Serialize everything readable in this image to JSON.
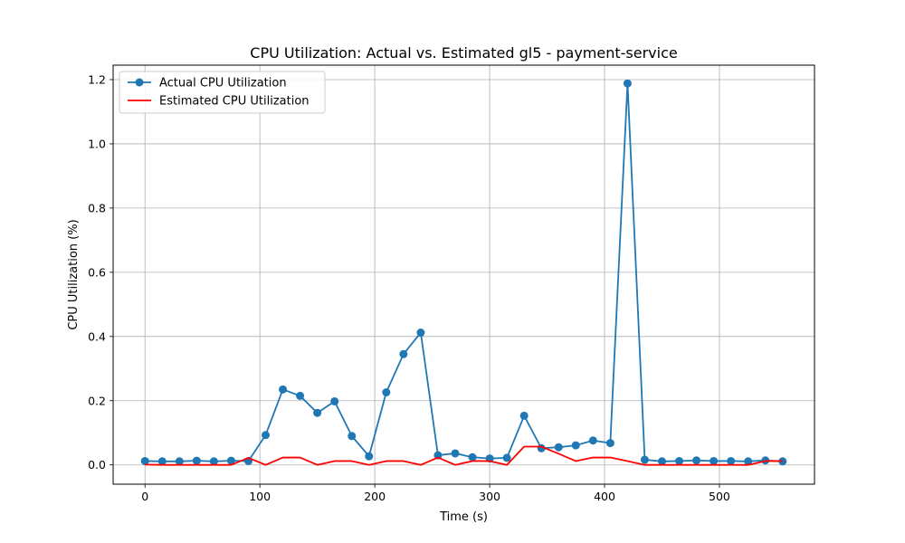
{
  "chart_data": {
    "type": "line",
    "title": "CPU Utilization: Actual vs. Estimated gl5 - payment-service",
    "xlabel": "Time (s)",
    "ylabel": "CPU Utilization (%)",
    "xlim": [
      -27.75,
      582.75
    ],
    "ylim": [
      -0.06,
      1.245
    ],
    "xticks": [
      0,
      100,
      200,
      300,
      400,
      500
    ],
    "xtick_labels": [
      "0",
      "100",
      "200",
      "300",
      "400",
      "500"
    ],
    "yticks": [
      0.0,
      0.2,
      0.4,
      0.6,
      0.8,
      1.0,
      1.2
    ],
    "ytick_labels": [
      "0.0",
      "0.2",
      "0.4",
      "0.6",
      "0.8",
      "1.0",
      "1.2"
    ],
    "grid": true,
    "legend_position": "top-left",
    "x": [
      0,
      15,
      30,
      45,
      60,
      75,
      90,
      105,
      120,
      135,
      150,
      165,
      180,
      195,
      210,
      225,
      240,
      255,
      270,
      285,
      300,
      315,
      330,
      345,
      360,
      375,
      390,
      405,
      420,
      435,
      450,
      465,
      480,
      495,
      510,
      525,
      540,
      555
    ],
    "series": [
      {
        "name": "Actual CPU Utilization",
        "color": "#1f77b4",
        "marker": "circle",
        "values": [
          0.012,
          0.011,
          0.011,
          0.013,
          0.011,
          0.013,
          0.012,
          0.093,
          0.235,
          0.215,
          0.162,
          0.198,
          0.09,
          0.027,
          0.226,
          0.345,
          0.412,
          0.03,
          0.036,
          0.024,
          0.02,
          0.022,
          0.153,
          0.052,
          0.055,
          0.061,
          0.076,
          0.068,
          1.188,
          0.016,
          0.011,
          0.012,
          0.014,
          0.012,
          0.012,
          0.011,
          0.014,
          0.011
        ]
      },
      {
        "name": "Estimated CPU Utilization",
        "color": "#ff0000",
        "marker": "none",
        "values": [
          0.001,
          0.0,
          0.0,
          0.0,
          0.0,
          0.0,
          0.022,
          0.0,
          0.023,
          0.023,
          0.0,
          0.012,
          0.012,
          0.0,
          0.012,
          0.012,
          0.0,
          0.023,
          0.0,
          0.012,
          0.012,
          0.0,
          0.057,
          0.057,
          0.035,
          0.012,
          0.023,
          0.023,
          0.012,
          0.0,
          0.0,
          0.0,
          0.0,
          0.0,
          0.0,
          0.0,
          0.012,
          0.012
        ]
      }
    ]
  }
}
